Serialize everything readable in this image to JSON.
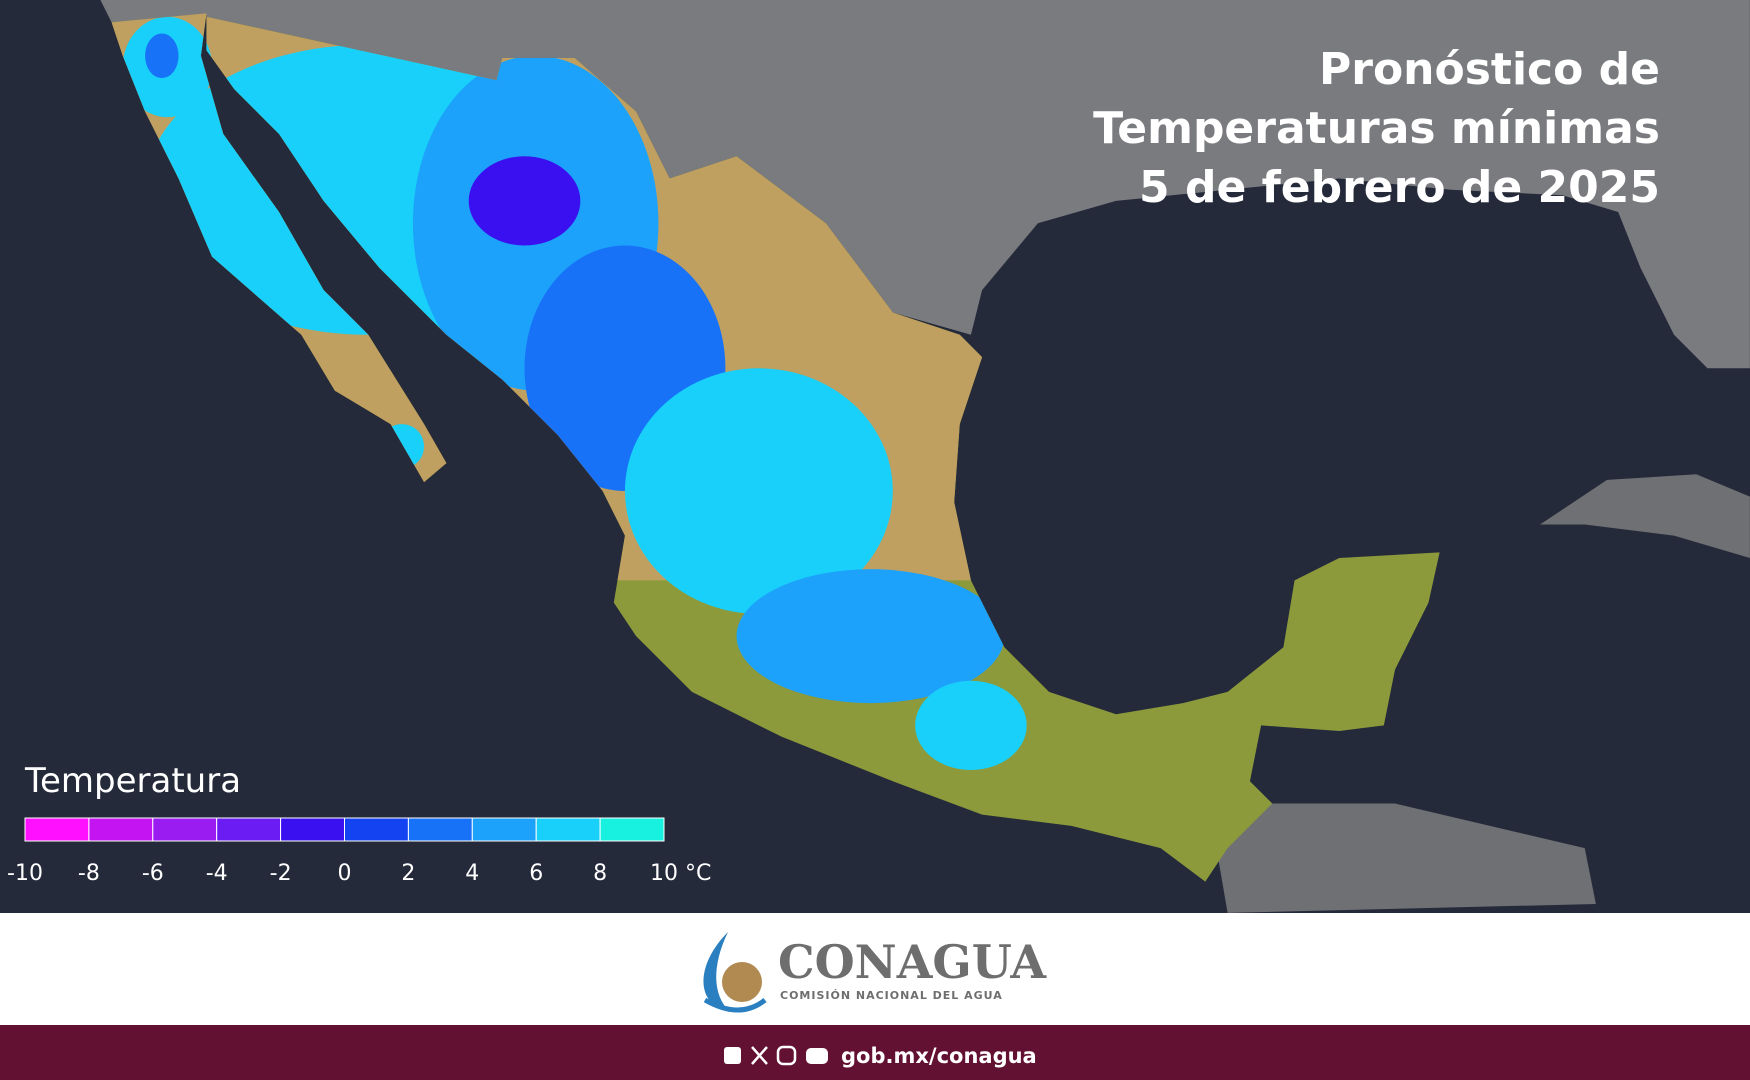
{
  "title": [
    "Pronóstico de",
    "Temperaturas mínimas",
    "5 de febrero de 2025"
  ],
  "legend": {
    "title": "Temperatura",
    "ticks": [
      -10,
      -8,
      -6,
      -4,
      -2,
      0,
      2,
      4,
      6,
      8,
      {
        "value": 10,
        "label": "10 °C"
      }
    ],
    "colors": [
      "#ff10ff",
      "#c414f2",
      "#9a1cf0",
      "#6a1cf2",
      "#3a10f0",
      "#1444f2",
      "#1872f8",
      "#1ca2fa",
      "#18d0fa",
      "#18f0e0"
    ]
  },
  "footer": {
    "logo_name": "CONAGUA",
    "logo_subtitle": "COMISIÓN NACIONAL DEL AGUA",
    "url": "gob.mx/conagua"
  }
}
